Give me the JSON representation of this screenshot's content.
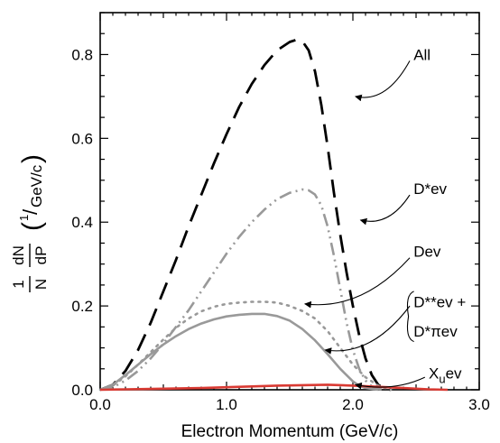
{
  "chart_data": {
    "type": "line",
    "title": "",
    "xlabel": "Electron Momentum (GeV/c)",
    "ylabel": {
      "frac1_num": "1",
      "frac1_den": "N",
      "frac2_num": "dN",
      "frac2_den": "dP",
      "unit_num": "1",
      "unit_slash": "/",
      "unit_den": "GeV/c",
      "paren_open": "(",
      "paren_close": ")"
    },
    "xlim": [
      0.0,
      3.0
    ],
    "ylim": [
      0.0,
      0.9
    ],
    "xticks": [
      "0.0",
      "1.0",
      "2.0",
      "3.0"
    ],
    "yticks": [
      "0.0",
      "0.2",
      "0.4",
      "0.6",
      "0.8"
    ],
    "grid": false,
    "legend": "none",
    "series": [
      {
        "name": "All",
        "style": "long-dash",
        "color": "#000000",
        "x": [
          0.0,
          0.1,
          0.2,
          0.3,
          0.4,
          0.5,
          0.6,
          0.7,
          0.8,
          0.9,
          1.0,
          1.1,
          1.2,
          1.3,
          1.4,
          1.5,
          1.55,
          1.6,
          1.65,
          1.7,
          1.75,
          1.8,
          1.85,
          1.9,
          1.95,
          2.0,
          2.05,
          2.1,
          2.15,
          2.2,
          2.25,
          2.3
        ],
        "y": [
          0.0,
          0.012,
          0.045,
          0.095,
          0.16,
          0.235,
          0.31,
          0.39,
          0.465,
          0.54,
          0.61,
          0.675,
          0.73,
          0.775,
          0.81,
          0.83,
          0.835,
          0.832,
          0.81,
          0.76,
          0.68,
          0.58,
          0.47,
          0.37,
          0.28,
          0.2,
          0.13,
          0.075,
          0.035,
          0.012,
          0.003,
          0.0
        ]
      },
      {
        "name": "D*ev",
        "style": "dash-dot-dot",
        "color": "#999999",
        "x": [
          0.0,
          0.1,
          0.2,
          0.3,
          0.4,
          0.5,
          0.6,
          0.7,
          0.8,
          0.9,
          1.0,
          1.1,
          1.2,
          1.3,
          1.4,
          1.5,
          1.6,
          1.65,
          1.7,
          1.75,
          1.8,
          1.85,
          1.9,
          1.95,
          2.0,
          2.05,
          2.1,
          2.15,
          2.2,
          2.25
        ],
        "y": [
          0.0,
          0.006,
          0.022,
          0.045,
          0.075,
          0.11,
          0.15,
          0.19,
          0.235,
          0.28,
          0.325,
          0.365,
          0.4,
          0.43,
          0.455,
          0.47,
          0.478,
          0.476,
          0.466,
          0.44,
          0.39,
          0.32,
          0.24,
          0.16,
          0.095,
          0.05,
          0.022,
          0.008,
          0.002,
          0.0
        ]
      },
      {
        "name": "Dev",
        "style": "dotted",
        "color": "#999999",
        "x": [
          0.0,
          0.1,
          0.2,
          0.3,
          0.4,
          0.5,
          0.6,
          0.7,
          0.8,
          0.9,
          1.0,
          1.1,
          1.2,
          1.3,
          1.4,
          1.5,
          1.6,
          1.7,
          1.8,
          1.9,
          2.0,
          2.1,
          2.2,
          2.3
        ],
        "y": [
          0.0,
          0.01,
          0.032,
          0.06,
          0.09,
          0.12,
          0.148,
          0.17,
          0.187,
          0.198,
          0.205,
          0.208,
          0.21,
          0.21,
          0.208,
          0.2,
          0.188,
          0.17,
          0.14,
          0.1,
          0.06,
          0.03,
          0.01,
          0.0
        ]
      },
      {
        "name": "D**ev + D*πev",
        "style": "solid",
        "color": "#999999",
        "x": [
          0.0,
          0.1,
          0.2,
          0.3,
          0.4,
          0.5,
          0.6,
          0.7,
          0.8,
          0.9,
          1.0,
          1.1,
          1.2,
          1.3,
          1.4,
          1.5,
          1.6,
          1.7,
          1.8,
          1.9,
          2.0,
          2.05,
          2.1,
          2.2
        ],
        "y": [
          0.0,
          0.012,
          0.035,
          0.06,
          0.085,
          0.108,
          0.128,
          0.145,
          0.158,
          0.168,
          0.175,
          0.179,
          0.181,
          0.181,
          0.176,
          0.165,
          0.145,
          0.118,
          0.085,
          0.05,
          0.02,
          0.01,
          0.004,
          0.0
        ]
      },
      {
        "name": "X_u ev",
        "style": "solid",
        "color": "#d93a33",
        "x": [
          0.0,
          0.2,
          0.4,
          0.6,
          0.8,
          1.0,
          1.2,
          1.4,
          1.6,
          1.8,
          2.0,
          2.2,
          2.4,
          2.6,
          2.75
        ],
        "y": [
          0.0,
          0.001,
          0.002,
          0.003,
          0.004,
          0.006,
          0.008,
          0.01,
          0.011,
          0.012,
          0.01,
          0.007,
          0.004,
          0.001,
          0.0
        ]
      }
    ],
    "annotations": [
      {
        "label": "All",
        "text_x": 2.48,
        "text_y": 0.8,
        "arrow_from_x": 2.45,
        "arrow_from_y": 0.785,
        "arrow_to_x": 2.02,
        "arrow_to_y": 0.7
      },
      {
        "label": "D*ev",
        "text_x": 2.48,
        "text_y": 0.48,
        "arrow_from_x": 2.45,
        "arrow_from_y": 0.465,
        "arrow_to_x": 2.06,
        "arrow_to_y": 0.405
      },
      {
        "label": "Dev",
        "text_x": 2.48,
        "text_y": 0.33,
        "arrow_from_x": 2.45,
        "arrow_from_y": 0.315,
        "arrow_to_x": 1.62,
        "arrow_to_y": 0.205
      },
      {
        "label": "D**ev +",
        "text_x": 2.48,
        "text_y": 0.21,
        "arrow_from_x": 2.45,
        "arrow_from_y": 0.2,
        "arrow_to_x": 1.78,
        "arrow_to_y": 0.095
      },
      {
        "label": "D*πev",
        "text_x": 2.48,
        "text_y": 0.14,
        "arrow_from_x": null,
        "arrow_from_y": null,
        "arrow_to_x": null,
        "arrow_to_y": null
      },
      {
        "label_main": "X",
        "label_sub": "u",
        "label_tail": "ev",
        "text_x": 2.6,
        "text_y": 0.04,
        "arrow_from_x": 2.57,
        "arrow_from_y": 0.03,
        "arrow_to_x": 2.02,
        "arrow_to_y": 0.012
      }
    ]
  }
}
